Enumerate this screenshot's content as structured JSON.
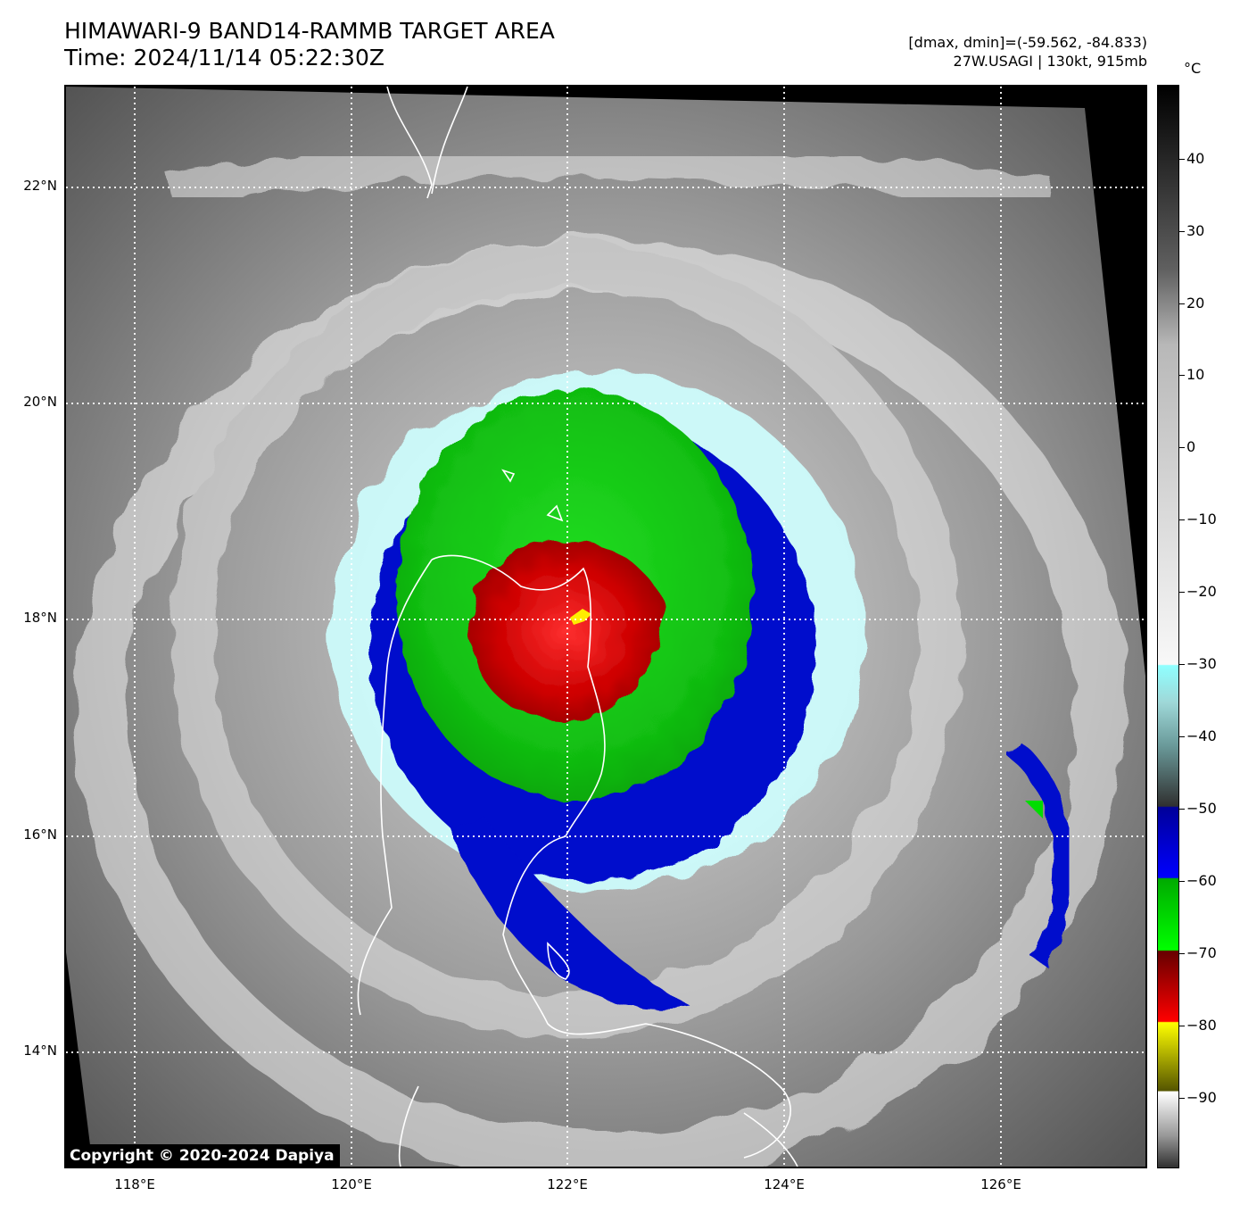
{
  "header": {
    "title_line1": "HIMAWARI-9 BAND14-RAMMB TARGET AREA",
    "title_line2": "Time: 2024/11/14 05:22:30Z",
    "range_text": "[dmax, dmin]=(-59.562, -84.833)",
    "storm_text": "27W.USAGI | 130kt, 915mb"
  },
  "map": {
    "lat_labels": [
      "22°N",
      "20°N",
      "18°N",
      "16°N",
      "14°N"
    ],
    "lon_labels": [
      "118°E",
      "120°E",
      "122°E",
      "124°E",
      "126°E"
    ],
    "copyright": "Copyright © 2020-2024 Dapiya"
  },
  "colorbar": {
    "unit": "°C",
    "ticks": [
      "40",
      "30",
      "20",
      "10",
      "0",
      "−10",
      "−20",
      "−30",
      "−40",
      "−50",
      "−60",
      "−70",
      "−80",
      "−90"
    ]
  }
}
